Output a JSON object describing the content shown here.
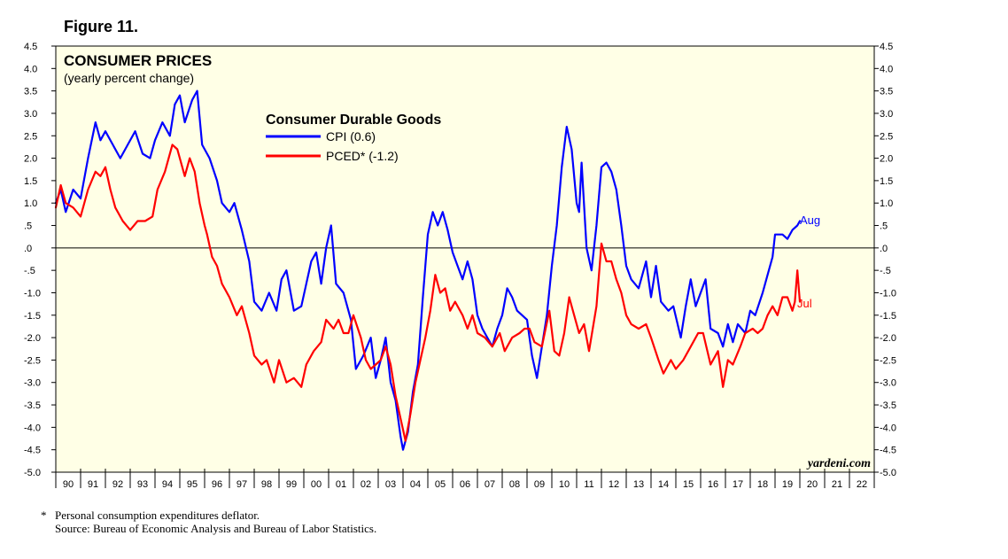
{
  "figure_label": "Figure 11.",
  "footnote": {
    "marker": "*",
    "line1": "Personal consumption expenditures deflator.",
    "line2": "Source: Bureau of Economic Analysis and Bureau of Labor Statistics."
  },
  "colors": {
    "background": "#FFFFE6",
    "cpi": "#0000FF",
    "pced": "#FF0000",
    "end_cpi_label": "#0000FF",
    "end_pced_label": "#FF0000"
  },
  "chart_data": {
    "type": "line",
    "title": "CONSUMER PRICES",
    "subtitle": "(yearly percent change)",
    "legend_title": "Consumer Durable Goods",
    "watermark": "yardeni.com",
    "ylim": [
      -5.0,
      4.5
    ],
    "xlim": [
      1990.0,
      2023.0
    ],
    "left_ticks": [
      "-5.0",
      "-4.5",
      "-4.0",
      "-3.5",
      "-3.0",
      "-2.5",
      "-2.0",
      "-1.5",
      "-1.0",
      "-.5",
      ".0",
      ".5",
      "1.0",
      "1.5",
      "2.0",
      "2.5",
      "3.0",
      "3.5",
      "4.0",
      "4.5"
    ],
    "right_ticks": [
      "-5.0",
      "-4.5",
      "-4.0",
      "-3.5",
      "-3.0",
      "-2.5",
      "-2.0",
      "-1.5",
      "-1.0",
      "-.5",
      ".0",
      ".5",
      "1.0",
      "1.5",
      "2.0",
      "2.5",
      "3.0",
      "3.5",
      "4.0",
      "4.5"
    ],
    "tick_values": [
      -5.0,
      -4.5,
      -4.0,
      -3.5,
      -3.0,
      -2.5,
      -2.0,
      -1.5,
      -1.0,
      -0.5,
      0.0,
      0.5,
      1.0,
      1.5,
      2.0,
      2.5,
      3.0,
      3.5,
      4.0,
      4.5
    ],
    "year_labels": [
      "90",
      "91",
      "92",
      "93",
      "94",
      "95",
      "96",
      "97",
      "98",
      "99",
      "00",
      "01",
      "02",
      "03",
      "04",
      "05",
      "06",
      "07",
      "08",
      "09",
      "10",
      "11",
      "12",
      "13",
      "14",
      "15",
      "16",
      "17",
      "18",
      "19",
      "20",
      "21",
      "22"
    ],
    "zero_line": 0.0,
    "series": [
      {
        "name": "CPI (0.6)",
        "color": "#0000FF",
        "end_label": "Aug",
        "points": [
          [
            1990.0,
            1.0
          ],
          [
            1990.2,
            1.3
          ],
          [
            1990.4,
            0.8
          ],
          [
            1990.7,
            1.3
          ],
          [
            1991.0,
            1.1
          ],
          [
            1991.3,
            2.0
          ],
          [
            1991.6,
            2.8
          ],
          [
            1991.8,
            2.4
          ],
          [
            1992.0,
            2.6
          ],
          [
            1992.3,
            2.3
          ],
          [
            1992.6,
            2.0
          ],
          [
            1992.9,
            2.3
          ],
          [
            1993.2,
            2.6
          ],
          [
            1993.5,
            2.1
          ],
          [
            1993.8,
            2.0
          ],
          [
            1994.0,
            2.4
          ],
          [
            1994.3,
            2.8
          ],
          [
            1994.6,
            2.5
          ],
          [
            1994.8,
            3.2
          ],
          [
            1995.0,
            3.4
          ],
          [
            1995.2,
            2.8
          ],
          [
            1995.5,
            3.3
          ],
          [
            1995.7,
            3.5
          ],
          [
            1995.9,
            2.3
          ],
          [
            1996.2,
            2.0
          ],
          [
            1996.5,
            1.5
          ],
          [
            1996.7,
            1.0
          ],
          [
            1997.0,
            0.8
          ],
          [
            1997.2,
            1.0
          ],
          [
            1997.5,
            0.4
          ],
          [
            1997.8,
            -0.3
          ],
          [
            1998.0,
            -1.2
          ],
          [
            1998.3,
            -1.4
          ],
          [
            1998.6,
            -1.0
          ],
          [
            1998.9,
            -1.4
          ],
          [
            1999.1,
            -0.7
          ],
          [
            1999.3,
            -0.5
          ],
          [
            1999.6,
            -1.4
          ],
          [
            1999.9,
            -1.3
          ],
          [
            2000.1,
            -0.8
          ],
          [
            2000.3,
            -0.3
          ],
          [
            2000.5,
            -0.1
          ],
          [
            2000.7,
            -0.8
          ],
          [
            2000.9,
            0.0
          ],
          [
            2001.1,
            0.5
          ],
          [
            2001.3,
            -0.8
          ],
          [
            2001.6,
            -1.0
          ],
          [
            2001.9,
            -1.6
          ],
          [
            2002.1,
            -2.7
          ],
          [
            2002.4,
            -2.4
          ],
          [
            2002.7,
            -2.0
          ],
          [
            2002.9,
            -2.9
          ],
          [
            2003.1,
            -2.5
          ],
          [
            2003.3,
            -2.0
          ],
          [
            2003.5,
            -3.0
          ],
          [
            2003.7,
            -3.4
          ],
          [
            2003.9,
            -4.2
          ],
          [
            2004.0,
            -4.5
          ],
          [
            2004.2,
            -4.1
          ],
          [
            2004.4,
            -3.2
          ],
          [
            2004.6,
            -2.6
          ],
          [
            2004.8,
            -1.1
          ],
          [
            2005.0,
            0.3
          ],
          [
            2005.2,
            0.8
          ],
          [
            2005.4,
            0.5
          ],
          [
            2005.6,
            0.8
          ],
          [
            2005.8,
            0.4
          ],
          [
            2006.0,
            -0.1
          ],
          [
            2006.2,
            -0.4
          ],
          [
            2006.4,
            -0.7
          ],
          [
            2006.6,
            -0.3
          ],
          [
            2006.8,
            -0.7
          ],
          [
            2007.0,
            -1.5
          ],
          [
            2007.2,
            -1.8
          ],
          [
            2007.4,
            -2.0
          ],
          [
            2007.6,
            -2.2
          ],
          [
            2007.8,
            -1.8
          ],
          [
            2008.0,
            -1.5
          ],
          [
            2008.2,
            -0.9
          ],
          [
            2008.4,
            -1.1
          ],
          [
            2008.6,
            -1.4
          ],
          [
            2008.8,
            -1.5
          ],
          [
            2009.0,
            -1.6
          ],
          [
            2009.2,
            -2.4
          ],
          [
            2009.4,
            -2.9
          ],
          [
            2009.6,
            -2.2
          ],
          [
            2009.8,
            -1.5
          ],
          [
            2010.0,
            -0.4
          ],
          [
            2010.2,
            0.5
          ],
          [
            2010.4,
            1.8
          ],
          [
            2010.6,
            2.7
          ],
          [
            2010.8,
            2.2
          ],
          [
            2011.0,
            1.0
          ],
          [
            2011.1,
            0.8
          ],
          [
            2011.2,
            1.9
          ],
          [
            2011.4,
            0.0
          ],
          [
            2011.6,
            -0.5
          ],
          [
            2011.8,
            0.5
          ],
          [
            2012.0,
            1.8
          ],
          [
            2012.2,
            1.9
          ],
          [
            2012.4,
            1.7
          ],
          [
            2012.6,
            1.3
          ],
          [
            2012.8,
            0.5
          ],
          [
            2013.0,
            -0.4
          ],
          [
            2013.2,
            -0.7
          ],
          [
            2013.5,
            -0.9
          ],
          [
            2013.8,
            -0.3
          ],
          [
            2014.0,
            -1.1
          ],
          [
            2014.2,
            -0.4
          ],
          [
            2014.4,
            -1.2
          ],
          [
            2014.7,
            -1.4
          ],
          [
            2014.9,
            -1.3
          ],
          [
            2015.2,
            -2.0
          ],
          [
            2015.4,
            -1.3
          ],
          [
            2015.6,
            -0.7
          ],
          [
            2015.8,
            -1.3
          ],
          [
            2016.0,
            -1.0
          ],
          [
            2016.2,
            -0.7
          ],
          [
            2016.4,
            -1.8
          ],
          [
            2016.7,
            -1.9
          ],
          [
            2016.9,
            -2.2
          ],
          [
            2017.1,
            -1.7
          ],
          [
            2017.3,
            -2.1
          ],
          [
            2017.5,
            -1.7
          ],
          [
            2017.8,
            -1.9
          ],
          [
            2018.0,
            -1.4
          ],
          [
            2018.2,
            -1.5
          ],
          [
            2018.5,
            -1.0
          ],
          [
            2018.7,
            -0.6
          ],
          [
            2018.9,
            -0.2
          ],
          [
            2019.0,
            0.3
          ],
          [
            2019.3,
            0.3
          ],
          [
            2019.5,
            0.2
          ],
          [
            2019.7,
            0.4
          ],
          [
            2019.9,
            0.5
          ],
          [
            2020.0,
            0.6
          ]
        ]
      },
      {
        "name": "PCED* (-1.2)",
        "color": "#FF0000",
        "end_label": "Jul",
        "points": [
          [
            1990.0,
            0.9
          ],
          [
            1990.2,
            1.4
          ],
          [
            1990.4,
            1.0
          ],
          [
            1990.7,
            0.9
          ],
          [
            1991.0,
            0.7
          ],
          [
            1991.3,
            1.3
          ],
          [
            1991.6,
            1.7
          ],
          [
            1991.8,
            1.6
          ],
          [
            1992.0,
            1.8
          ],
          [
            1992.2,
            1.3
          ],
          [
            1992.4,
            0.9
          ],
          [
            1992.7,
            0.6
          ],
          [
            1993.0,
            0.4
          ],
          [
            1993.3,
            0.6
          ],
          [
            1993.6,
            0.6
          ],
          [
            1993.9,
            0.7
          ],
          [
            1994.1,
            1.3
          ],
          [
            1994.4,
            1.7
          ],
          [
            1994.7,
            2.3
          ],
          [
            1994.9,
            2.2
          ],
          [
            1995.2,
            1.6
          ],
          [
            1995.4,
            2.0
          ],
          [
            1995.6,
            1.7
          ],
          [
            1995.8,
            1.0
          ],
          [
            1996.0,
            0.5
          ],
          [
            1996.1,
            0.3
          ],
          [
            1996.3,
            -0.2
          ],
          [
            1996.5,
            -0.4
          ],
          [
            1996.7,
            -0.8
          ],
          [
            1997.0,
            -1.1
          ],
          [
            1997.3,
            -1.5
          ],
          [
            1997.5,
            -1.3
          ],
          [
            1997.8,
            -1.9
          ],
          [
            1998.0,
            -2.4
          ],
          [
            1998.3,
            -2.6
          ],
          [
            1998.5,
            -2.5
          ],
          [
            1998.8,
            -3.0
          ],
          [
            1999.0,
            -2.5
          ],
          [
            1999.3,
            -3.0
          ],
          [
            1999.6,
            -2.9
          ],
          [
            1999.9,
            -3.1
          ],
          [
            2000.1,
            -2.6
          ],
          [
            2000.4,
            -2.3
          ],
          [
            2000.7,
            -2.1
          ],
          [
            2000.9,
            -1.6
          ],
          [
            2001.2,
            -1.8
          ],
          [
            2001.4,
            -1.6
          ],
          [
            2001.6,
            -1.9
          ],
          [
            2001.8,
            -1.9
          ],
          [
            2002.0,
            -1.5
          ],
          [
            2002.3,
            -2.0
          ],
          [
            2002.5,
            -2.5
          ],
          [
            2002.7,
            -2.7
          ],
          [
            2002.9,
            -2.6
          ],
          [
            2003.1,
            -2.5
          ],
          [
            2003.3,
            -2.2
          ],
          [
            2003.5,
            -2.6
          ],
          [
            2003.7,
            -3.3
          ],
          [
            2003.9,
            -3.8
          ],
          [
            2004.1,
            -4.3
          ],
          [
            2004.3,
            -3.7
          ],
          [
            2004.5,
            -3.0
          ],
          [
            2004.7,
            -2.5
          ],
          [
            2004.9,
            -2.0
          ],
          [
            2005.1,
            -1.4
          ],
          [
            2005.3,
            -0.6
          ],
          [
            2005.5,
            -1.0
          ],
          [
            2005.7,
            -0.9
          ],
          [
            2005.9,
            -1.4
          ],
          [
            2006.1,
            -1.2
          ],
          [
            2006.4,
            -1.5
          ],
          [
            2006.6,
            -1.8
          ],
          [
            2006.8,
            -1.5
          ],
          [
            2007.0,
            -1.9
          ],
          [
            2007.3,
            -2.0
          ],
          [
            2007.6,
            -2.2
          ],
          [
            2007.9,
            -1.9
          ],
          [
            2008.1,
            -2.3
          ],
          [
            2008.4,
            -2.0
          ],
          [
            2008.7,
            -1.9
          ],
          [
            2008.9,
            -1.8
          ],
          [
            2009.1,
            -1.8
          ],
          [
            2009.3,
            -2.1
          ],
          [
            2009.6,
            -2.2
          ],
          [
            2009.9,
            -1.4
          ],
          [
            2010.1,
            -2.3
          ],
          [
            2010.3,
            -2.4
          ],
          [
            2010.5,
            -1.9
          ],
          [
            2010.7,
            -1.1
          ],
          [
            2010.9,
            -1.5
          ],
          [
            2011.1,
            -1.9
          ],
          [
            2011.3,
            -1.7
          ],
          [
            2011.5,
            -2.3
          ],
          [
            2011.8,
            -1.3
          ],
          [
            2012.0,
            0.1
          ],
          [
            2012.2,
            -0.3
          ],
          [
            2012.4,
            -0.3
          ],
          [
            2012.6,
            -0.7
          ],
          [
            2012.8,
            -1.0
          ],
          [
            2013.0,
            -1.5
          ],
          [
            2013.2,
            -1.7
          ],
          [
            2013.5,
            -1.8
          ],
          [
            2013.8,
            -1.7
          ],
          [
            2014.0,
            -2.0
          ],
          [
            2014.3,
            -2.5
          ],
          [
            2014.5,
            -2.8
          ],
          [
            2014.8,
            -2.5
          ],
          [
            2015.0,
            -2.7
          ],
          [
            2015.3,
            -2.5
          ],
          [
            2015.5,
            -2.3
          ],
          [
            2015.7,
            -2.1
          ],
          [
            2015.9,
            -1.9
          ],
          [
            2016.1,
            -1.9
          ],
          [
            2016.4,
            -2.6
          ],
          [
            2016.7,
            -2.3
          ],
          [
            2016.9,
            -3.1
          ],
          [
            2017.1,
            -2.5
          ],
          [
            2017.3,
            -2.6
          ],
          [
            2017.6,
            -2.2
          ],
          [
            2017.8,
            -1.9
          ],
          [
            2018.1,
            -1.8
          ],
          [
            2018.3,
            -1.9
          ],
          [
            2018.5,
            -1.8
          ],
          [
            2018.7,
            -1.5
          ],
          [
            2018.9,
            -1.3
          ],
          [
            2019.1,
            -1.5
          ],
          [
            2019.3,
            -1.1
          ],
          [
            2019.5,
            -1.1
          ],
          [
            2019.7,
            -1.4
          ],
          [
            2019.8,
            -1.2
          ],
          [
            2019.9,
            -0.5
          ],
          [
            2020.0,
            -1.2
          ]
        ]
      }
    ]
  }
}
